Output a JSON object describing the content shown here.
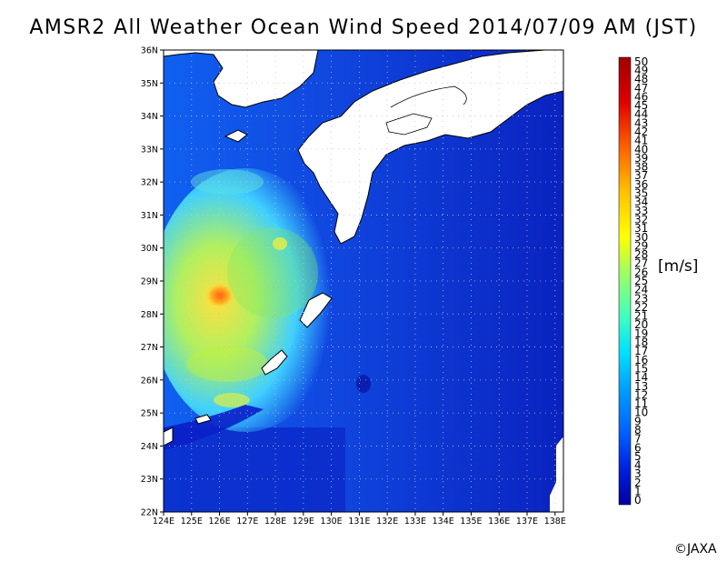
{
  "title": "AMSR2 All Weather Ocean Wind Speed 2014/07/09 AM (JST)",
  "map": {
    "lat_labels": [
      "36N",
      "35N",
      "34N",
      "33N",
      "32N",
      "31N",
      "30N",
      "29N",
      "28N",
      "27N",
      "26N",
      "25N",
      "24N",
      "23N",
      "22N"
    ],
    "lon_labels": [
      "124E",
      "125E",
      "126E",
      "127E",
      "128E",
      "129E",
      "130E",
      "131E",
      "132E",
      "133E",
      "134E",
      "135E",
      "136E",
      "137E",
      "138E"
    ],
    "lat_range": [
      22,
      36
    ],
    "lon_range": [
      124,
      138
    ],
    "land_color": "#ffffff",
    "low_wind_color": "#0a1fc8",
    "high_wind_color": "#e05010"
  },
  "colorbar": {
    "unit": "[m/s]",
    "min": 0,
    "max": 50,
    "labels": [
      "50",
      "49",
      "48",
      "47",
      "46",
      "45",
      "44",
      "43",
      "42",
      "41",
      "40",
      "39",
      "38",
      "37",
      "36",
      "35",
      "34",
      "33",
      "32",
      "31",
      "30",
      "29",
      "28",
      "27",
      "26",
      "25",
      "24",
      "23",
      "22",
      "21",
      "20",
      "19",
      "18",
      "17",
      "16",
      "15",
      "14",
      "13",
      "12",
      "11",
      "10",
      "9",
      "8",
      "7",
      "6",
      "5",
      "4",
      "3",
      "2",
      "1",
      "0"
    ],
    "colors": [
      "#0000a0",
      "#0020e0",
      "#0060ff",
      "#00a0ff",
      "#00e0ff",
      "#40ffc0",
      "#a0ff60",
      "#ffff00",
      "#ffc000",
      "#ff6000",
      "#e00000",
      "#a00000"
    ]
  },
  "credit": "©JAXA"
}
